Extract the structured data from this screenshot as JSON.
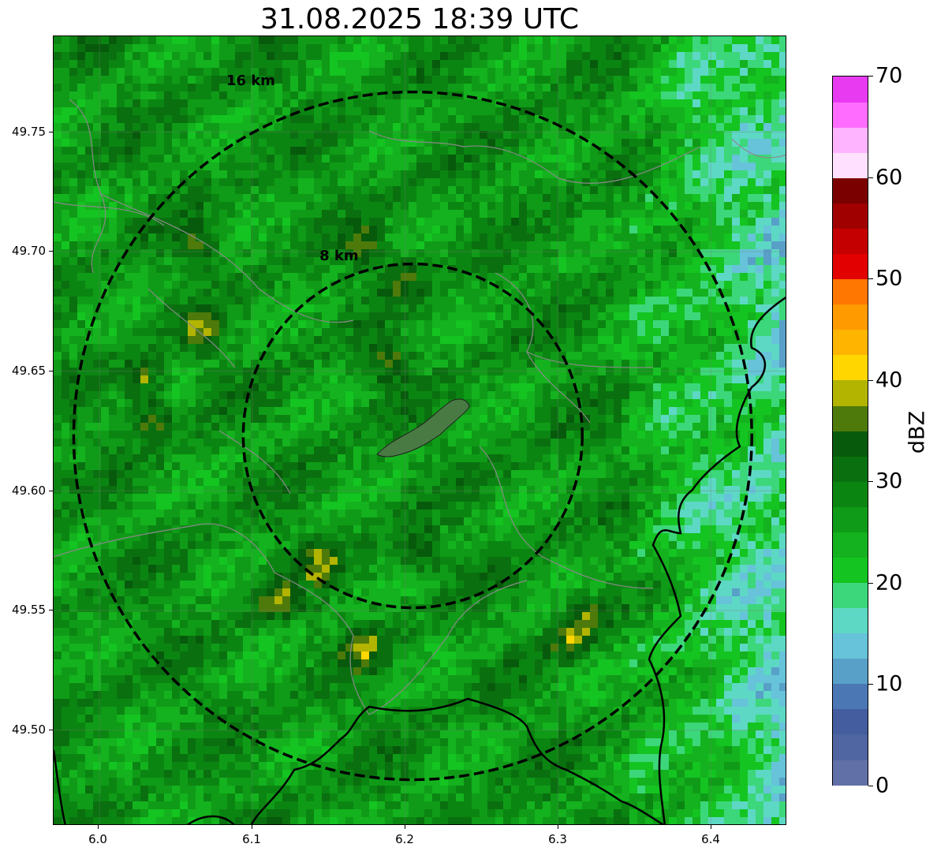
{
  "title": "31.08.2025 18:39 UTC",
  "map": {
    "lon_range": [
      5.97,
      6.45
    ],
    "lat_range": [
      49.46,
      49.79
    ],
    "center": {
      "lon": 6.205,
      "lat": 49.623
    },
    "grid": true,
    "x_ticks": [
      "6.0",
      "6.1",
      "6.2",
      "6.3",
      "6.4"
    ],
    "y_ticks": [
      "49.75",
      "49.70",
      "49.65",
      "49.60",
      "49.55",
      "49.50"
    ],
    "range_rings": [
      {
        "label": "8 km",
        "radius_km": 8
      },
      {
        "label": "16 km",
        "radius_km": 16
      }
    ],
    "reflectivity_field": "mostly 20–35 dBZ green, scattered 35–40 dBZ yellow-olive patches, lower 15–20 dBZ teal toward the east edge",
    "city_polygon_color": "#4a7a44"
  },
  "colorbar": {
    "unit": "dBZ",
    "min": 0,
    "max": 70,
    "step": 5,
    "tick_labels": [
      "0",
      "10",
      "20",
      "30",
      "40",
      "50",
      "60",
      "70"
    ],
    "colors": [
      "#6270a8",
      "#4f66a3",
      "#435d9e",
      "#4b78b5",
      "#58a0c8",
      "#66c3d9",
      "#5dd8c4",
      "#3cd77a",
      "#14c421",
      "#14b21e",
      "#0f9b17",
      "#0b8512",
      "#0a700f",
      "#075a0c",
      "#4d7a0a",
      "#b2b400",
      "#ffd600",
      "#ffb400",
      "#ff9a00",
      "#ff7700",
      "#e20000",
      "#c40000",
      "#a00000",
      "#7a0000",
      "#ffe0ff",
      "#ffb4ff",
      "#ff6cff",
      "#e83af0"
    ]
  }
}
